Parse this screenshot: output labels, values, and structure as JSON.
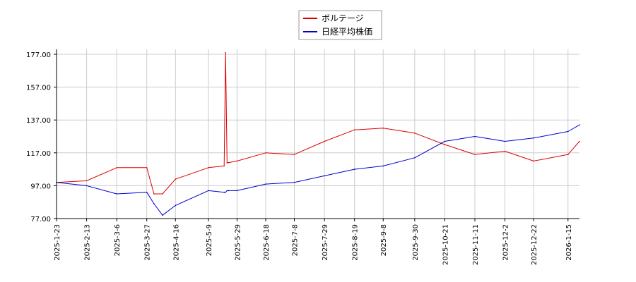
{
  "chart_data": {
    "type": "line",
    "title": "",
    "xlabel": "",
    "ylabel": "",
    "ylim": [
      77,
      180
    ],
    "yticks": [
      "177.00",
      "157.00",
      "137.00",
      "117.00",
      "97.00",
      "77.00"
    ],
    "ytick_values": [
      177,
      157,
      137,
      117,
      97,
      77
    ],
    "xticks": [
      "2025-1-23",
      "2025-2-13",
      "2025-3-6",
      "2025-3-27",
      "2025-4-16",
      "2025-5-9",
      "2025-5-29",
      "2025-6-18",
      "2025-7-8",
      "2025-7-29",
      "2025-8-19",
      "2025-9-8",
      "2025-9-30",
      "2025-10-21",
      "2025-11-11",
      "2025-12-2",
      "2025-12-22",
      "2026-1-15"
    ],
    "grid": true,
    "legend_placement": "top-center",
    "x": [
      "2025-1-23",
      "2025-2-13",
      "2025-3-6",
      "2025-3-27",
      "2025-4-1",
      "2025-4-7",
      "2025-4-16",
      "2025-5-9",
      "2025-5-20",
      "2025-5-21",
      "2025-5-22",
      "2025-5-23",
      "2025-5-29",
      "2025-6-18",
      "2025-7-8",
      "2025-7-29",
      "2025-8-19",
      "2025-9-8",
      "2025-9-30",
      "2025-10-21",
      "2025-11-11",
      "2025-12-2",
      "2025-12-22",
      "2026-1-15",
      "2026-1-23"
    ],
    "series": [
      {
        "name": "ボルテージ",
        "color": "#dd0000",
        "values": [
          99,
          100,
          108,
          108,
          92,
          92,
          101,
          108,
          109,
          178,
          111,
          111,
          112,
          117,
          116,
          124,
          131,
          132,
          129,
          122,
          116,
          118,
          112,
          116,
          124
        ]
      },
      {
        "name": "日経平均株価",
        "color": "#0000cc",
        "values": [
          99,
          97,
          92,
          93,
          86,
          79,
          85,
          94,
          93,
          93,
          94,
          94,
          94,
          98,
          99,
          103,
          107,
          109,
          114,
          124,
          127,
          124,
          126,
          130,
          134
        ]
      }
    ]
  }
}
